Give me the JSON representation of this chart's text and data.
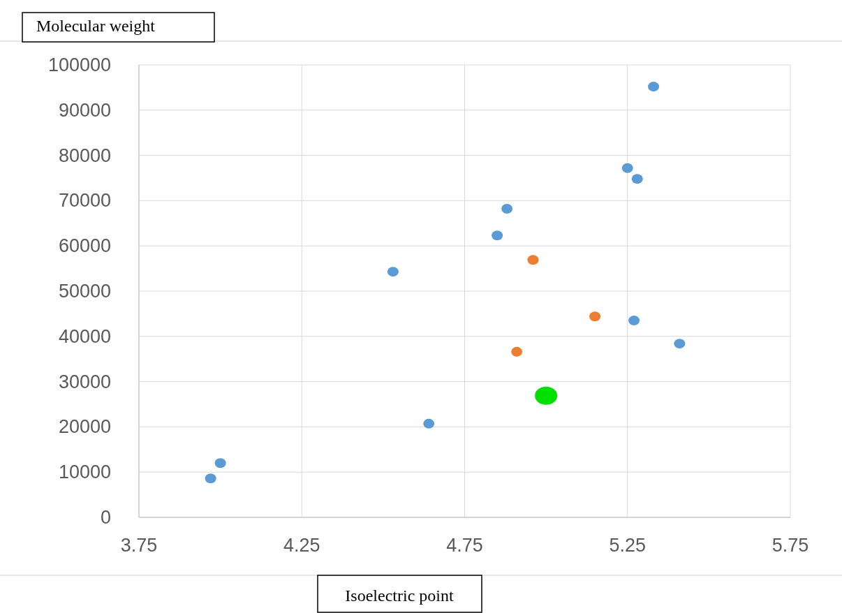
{
  "chart_data": {
    "type": "scatter",
    "ylabel": "Molecular weight",
    "xlabel": "Isoelectric point",
    "xlim": [
      3.75,
      5.75
    ],
    "xticks": [
      {
        "value": 3.75,
        "label": "3.75"
      },
      {
        "value": 4.25,
        "label": "4.25"
      },
      {
        "value": 4.75,
        "label": "4.75"
      },
      {
        "value": 5.25,
        "label": "5.25"
      },
      {
        "value": 5.75,
        "label": "5.75"
      }
    ],
    "ylim": [
      0,
      100000
    ],
    "yticks": [
      0,
      10000,
      20000,
      30000,
      40000,
      50000,
      60000,
      70000,
      80000,
      90000,
      100000
    ],
    "grid": true,
    "marker": "circle",
    "series": [
      {
        "color": "#5b9bd5",
        "x": [
          3.97,
          4.0,
          4.53,
          4.64,
          4.85,
          4.88,
          5.25,
          5.28,
          5.33,
          5.27,
          5.41
        ],
        "values": [
          8600,
          12000,
          54300,
          20700,
          62300,
          68200,
          77200,
          74800,
          95200,
          43500,
          38400
        ]
      },
      {
        "color": "#ed7d31",
        "x": [
          4.96,
          5.15,
          4.91
        ],
        "values": [
          56900,
          44400,
          36600
        ]
      },
      {
        "color": "#00e000",
        "x": [
          5.0
        ],
        "values": [
          26900
        ]
      }
    ]
  }
}
